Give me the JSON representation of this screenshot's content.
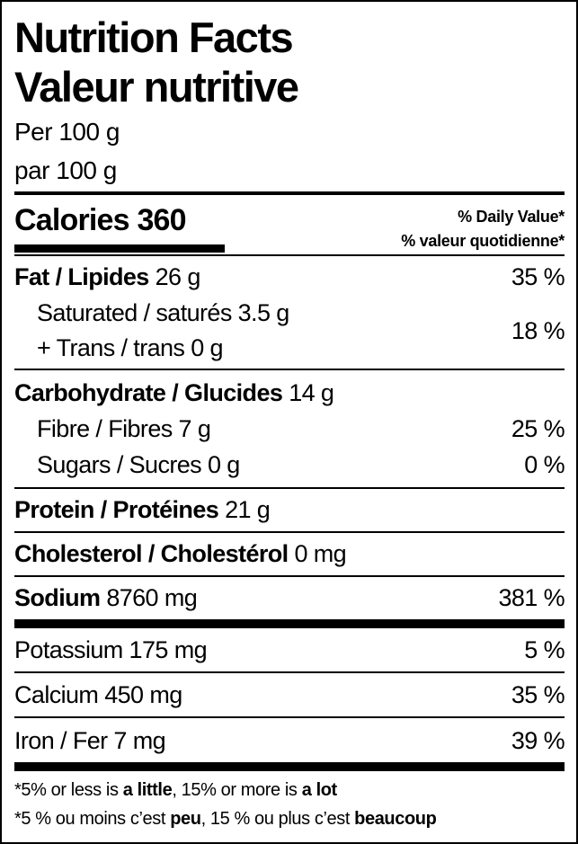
{
  "title_en": "Nutrition Facts",
  "title_fr": "Valeur nutritive",
  "serving_en": "Per 100 g",
  "serving_fr": "par 100 g",
  "calories": {
    "label": "Calories",
    "value": "360"
  },
  "dv_header_en": "% Daily Value*",
  "dv_header_fr": "% valeur quotidienne*",
  "nutrients": {
    "fat": {
      "label": "Fat / Lipides",
      "amount": "26 g",
      "dv": "35 %"
    },
    "saturated": {
      "label": "Saturated / saturés 3.5 g"
    },
    "trans": {
      "label": "+ Trans / trans 0 g"
    },
    "sat_trans_dv": "18 %",
    "carb": {
      "label": "Carbohydrate / Glucides",
      "amount": "14 g"
    },
    "fibre": {
      "label": "Fibre / Fibres 7 g",
      "dv": "25 %"
    },
    "sugars": {
      "label": "Sugars / Sucres 0 g",
      "dv": "0 %"
    },
    "protein": {
      "label": "Protein / Protéines",
      "amount": "21 g"
    },
    "cholesterol": {
      "label": "Cholesterol / Cholestérol",
      "amount": "0 mg"
    },
    "sodium": {
      "label": "Sodium",
      "amount": "8760 mg",
      "dv": "381 %"
    },
    "potassium": {
      "label": "Potassium 175 mg",
      "dv": "5 %"
    },
    "calcium": {
      "label": "Calcium 450 mg",
      "dv": "35 %"
    },
    "iron": {
      "label": "Iron / Fer 7 mg",
      "dv": "39 %"
    }
  },
  "footnote_en": {
    "a": "*5% or less is ",
    "b": "a little",
    "c": ", 15% or more is ",
    "d": "a lot"
  },
  "footnote_fr": {
    "a": "*5 % ou moins c’est ",
    "b": "peu",
    "c": ", 15 % ou plus c’est ",
    "d": "beaucoup"
  }
}
